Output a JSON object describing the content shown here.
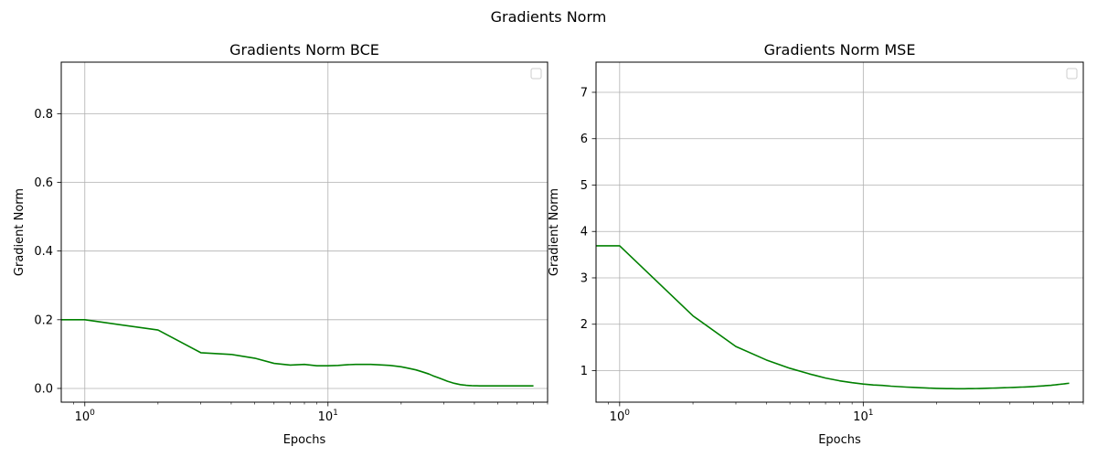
{
  "figure": {
    "suptitle": "Gradients Norm"
  },
  "chart_data": [
    {
      "type": "line",
      "title": "Gradients Norm BCE",
      "xlabel": "Epochs",
      "ylabel": "Gradient Norm",
      "xscale": "log",
      "xlim": [
        0.8,
        80
      ],
      "ylim": [
        -0.04,
        0.95
      ],
      "xticks": [
        {
          "value": 1,
          "base": "10",
          "exp": "0"
        },
        {
          "value": 10,
          "base": "10",
          "exp": "1"
        }
      ],
      "yticks": [
        {
          "value": 0.0,
          "label": "0.0"
        },
        {
          "value": 0.2,
          "label": "0.2"
        },
        {
          "value": 0.4,
          "label": "0.4"
        },
        {
          "value": 0.6,
          "label": "0.6"
        },
        {
          "value": 0.8,
          "label": "0.8"
        }
      ],
      "grid": true,
      "legend": "upper right (empty)",
      "series": [
        {
          "color": "#008000",
          "x": [
            0,
            1,
            2,
            3,
            4,
            5,
            6,
            7,
            8,
            9,
            10,
            11,
            12,
            13,
            14,
            15,
            16,
            17,
            18,
            19,
            20,
            21,
            22,
            23,
            24,
            25,
            26,
            27,
            28,
            29,
            30,
            31,
            32,
            33,
            34,
            35,
            36,
            37,
            38,
            39,
            40,
            41,
            42,
            43,
            44,
            45,
            46,
            47,
            48,
            49,
            50,
            51,
            52,
            53,
            54,
            55,
            56,
            57,
            58,
            59,
            60,
            61,
            62,
            63,
            64,
            65,
            66,
            67,
            68,
            69,
            70
          ],
          "y": [
            0.2,
            0.2,
            0.17,
            0.104,
            0.099,
            0.088,
            0.073,
            0.068,
            0.07,
            0.066,
            0.066,
            0.067,
            0.069,
            0.07,
            0.07,
            0.07,
            0.069,
            0.068,
            0.067,
            0.065,
            0.063,
            0.06,
            0.057,
            0.054,
            0.05,
            0.046,
            0.042,
            0.037,
            0.033,
            0.029,
            0.025,
            0.021,
            0.018,
            0.015,
            0.013,
            0.011,
            0.01,
            0.009,
            0.0085,
            0.008,
            0.0078,
            0.0076,
            0.0075,
            0.0075,
            0.0075,
            0.0075,
            0.0075,
            0.0075,
            0.0075,
            0.0075,
            0.0075,
            0.0075,
            0.0075,
            0.0075,
            0.0075,
            0.0075,
            0.0075,
            0.0075,
            0.0075,
            0.0075,
            0.0075,
            0.0075,
            0.0075,
            0.0075,
            0.0075,
            0.0075,
            0.0075,
            0.0075,
            0.0075,
            0.0075,
            0.0075
          ]
        }
      ]
    },
    {
      "type": "line",
      "title": "Gradients Norm MSE",
      "xlabel": "Epochs",
      "ylabel": "Gradient Norm",
      "xscale": "log",
      "xlim": [
        0.8,
        80
      ],
      "ylim": [
        0.32,
        7.65
      ],
      "xticks": [
        {
          "value": 1,
          "base": "10",
          "exp": "0"
        },
        {
          "value": 10,
          "base": "10",
          "exp": "1"
        }
      ],
      "yticks": [
        {
          "value": 1,
          "label": "1"
        },
        {
          "value": 2,
          "label": "2"
        },
        {
          "value": 3,
          "label": "3"
        },
        {
          "value": 4,
          "label": "4"
        },
        {
          "value": 5,
          "label": "5"
        },
        {
          "value": 6,
          "label": "6"
        },
        {
          "value": 7,
          "label": "7"
        }
      ],
      "grid": true,
      "legend": "upper right (empty)",
      "series": [
        {
          "color": "#008000",
          "x": [
            0,
            1,
            2,
            3,
            4,
            5,
            6,
            7,
            8,
            9,
            10,
            11,
            12,
            13,
            14,
            15,
            16,
            17,
            18,
            19,
            20,
            21,
            22,
            23,
            24,
            25,
            26,
            27,
            28,
            29,
            30,
            31,
            32,
            33,
            34,
            35,
            36,
            37,
            38,
            39,
            40,
            41,
            42,
            43,
            44,
            45,
            46,
            47,
            48,
            49,
            50,
            51,
            52,
            53,
            54,
            55,
            56,
            57,
            58,
            59,
            60,
            61,
            62,
            63,
            64,
            65,
            66,
            67,
            68,
            69,
            70
          ],
          "y": [
            3.69,
            3.69,
            2.18,
            1.52,
            1.23,
            1.05,
            0.93,
            0.84,
            0.78,
            0.74,
            0.71,
            0.69,
            0.68,
            0.665,
            0.655,
            0.645,
            0.638,
            0.632,
            0.626,
            0.621,
            0.617,
            0.614,
            0.612,
            0.611,
            0.61,
            0.61,
            0.61,
            0.611,
            0.612,
            0.613,
            0.615,
            0.617,
            0.619,
            0.621,
            0.623,
            0.625,
            0.627,
            0.629,
            0.631,
            0.633,
            0.635,
            0.637,
            0.639,
            0.641,
            0.643,
            0.645,
            0.647,
            0.649,
            0.652,
            0.654,
            0.657,
            0.66,
            0.663,
            0.666,
            0.669,
            0.672,
            0.675,
            0.678,
            0.681,
            0.684,
            0.688,
            0.692,
            0.696,
            0.7,
            0.704,
            0.708,
            0.712,
            0.716,
            0.72,
            0.724,
            0.728
          ]
        }
      ]
    }
  ]
}
